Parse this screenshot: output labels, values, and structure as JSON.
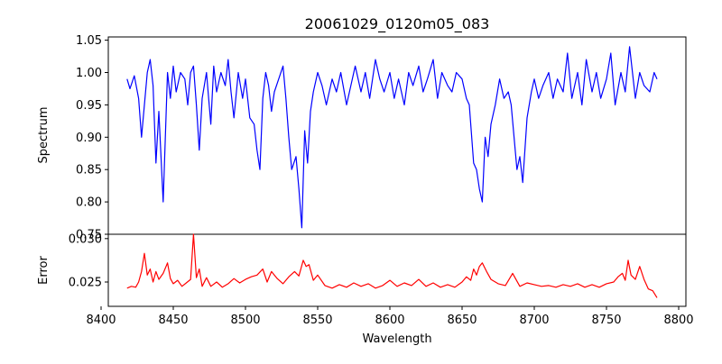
{
  "title": "20061029_0120m05_083",
  "chart_data": [
    {
      "type": "line",
      "ylabel": "Spectrum",
      "xlim": [
        8405,
        8805
      ],
      "ylim": [
        0.75,
        1.055
      ],
      "yticks": [
        "0.75",
        "0.80",
        "0.85",
        "0.90",
        "0.95",
        "1.00",
        "1.05"
      ],
      "series": [
        {
          "color": "#0000ff",
          "x": [
            8418,
            8420,
            8423,
            8426,
            8428,
            8430,
            8432,
            8434,
            8436,
            8438,
            8440,
            8443,
            8446,
            8448,
            8450,
            8452,
            8455,
            8458,
            8460,
            8462,
            8464,
            8466,
            8468,
            8470,
            8473,
            8476,
            8478,
            8480,
            8483,
            8486,
            8488,
            8490,
            8492,
            8495,
            8498,
            8500,
            8503,
            8506,
            8508,
            8510,
            8512,
            8514,
            8516,
            8518,
            8520,
            8523,
            8526,
            8528,
            8530,
            8532,
            8535,
            8537,
            8539,
            8541,
            8543,
            8545,
            8547,
            8550,
            8553,
            8556,
            8560,
            8563,
            8566,
            8570,
            8573,
            8576,
            8580,
            8583,
            8586,
            8590,
            8593,
            8596,
            8600,
            8603,
            8606,
            8610,
            8613,
            8616,
            8620,
            8623,
            8626,
            8630,
            8633,
            8636,
            8640,
            8643,
            8646,
            8650,
            8653,
            8655,
            8658,
            8660,
            8662,
            8664,
            8666,
            8668,
            8670,
            8673,
            8676,
            8679,
            8682,
            8684,
            8686,
            8688,
            8690,
            8692,
            8695,
            8698,
            8700,
            8703,
            8706,
            8710,
            8713,
            8716,
            8720,
            8723,
            8726,
            8730,
            8733,
            8736,
            8740,
            8743,
            8746,
            8750,
            8753,
            8756,
            8760,
            8763,
            8766,
            8770,
            8773,
            8776,
            8780,
            8783,
            8785
          ],
          "values": [
            0.99,
            0.975,
            0.995,
            0.96,
            0.9,
            0.95,
            1.0,
            1.02,
            0.98,
            0.86,
            0.94,
            0.8,
            1.0,
            0.96,
            1.01,
            0.97,
            1.0,
            0.99,
            0.95,
            1.0,
            1.01,
            0.95,
            0.88,
            0.96,
            1.0,
            0.92,
            1.01,
            0.97,
            1.0,
            0.98,
            1.02,
            0.97,
            0.93,
            1.0,
            0.96,
            0.99,
            0.93,
            0.92,
            0.88,
            0.85,
            0.96,
            1.0,
            0.98,
            0.94,
            0.97,
            0.99,
            1.01,
            0.96,
            0.9,
            0.85,
            0.87,
            0.82,
            0.76,
            0.91,
            0.86,
            0.94,
            0.97,
            1.0,
            0.98,
            0.95,
            0.99,
            0.97,
            1.0,
            0.95,
            0.98,
            1.01,
            0.97,
            1.0,
            0.96,
            1.02,
            0.99,
            0.97,
            1.0,
            0.96,
            0.99,
            0.95,
            1.0,
            0.98,
            1.01,
            0.97,
            0.99,
            1.02,
            0.96,
            1.0,
            0.98,
            0.97,
            1.0,
            0.99,
            0.96,
            0.95,
            0.86,
            0.85,
            0.82,
            0.8,
            0.9,
            0.87,
            0.92,
            0.95,
            0.99,
            0.96,
            0.97,
            0.95,
            0.9,
            0.85,
            0.87,
            0.83,
            0.93,
            0.97,
            0.99,
            0.96,
            0.98,
            1.0,
            0.96,
            0.99,
            0.97,
            1.03,
            0.96,
            1.0,
            0.95,
            1.02,
            0.97,
            1.0,
            0.96,
            0.99,
            1.03,
            0.95,
            1.0,
            0.97,
            1.04,
            0.96,
            1.0,
            0.98,
            0.97,
            1.0,
            0.99
          ]
        }
      ]
    },
    {
      "type": "line",
      "xlabel": "Wavelength",
      "ylabel": "Error",
      "xlim": [
        8405,
        8805
      ],
      "ylim": [
        0.0222,
        0.0305
      ],
      "yticks": [
        "0.025",
        "0.030"
      ],
      "xticks": [
        "8400",
        "8450",
        "8500",
        "8550",
        "8600",
        "8650",
        "8700",
        "8750",
        "8800"
      ],
      "series": [
        {
          "color": "#ff0000",
          "x": [
            8418,
            8421,
            8424,
            8426,
            8428,
            8430,
            8432,
            8434,
            8436,
            8438,
            8440,
            8443,
            8446,
            8448,
            8450,
            8453,
            8456,
            8459,
            8462,
            8464,
            8466,
            8468,
            8470,
            8473,
            8476,
            8480,
            8484,
            8488,
            8492,
            8496,
            8500,
            8504,
            8508,
            8512,
            8515,
            8518,
            8522,
            8526,
            8530,
            8534,
            8537,
            8540,
            8542,
            8544,
            8547,
            8550,
            8555,
            8560,
            8565,
            8570,
            8575,
            8580,
            8585,
            8590,
            8595,
            8600,
            8605,
            8610,
            8615,
            8620,
            8625,
            8630,
            8635,
            8640,
            8645,
            8650,
            8653,
            8656,
            8658,
            8660,
            8662,
            8664,
            8667,
            8670,
            8675,
            8680,
            8685,
            8690,
            8695,
            8700,
            8705,
            8710,
            8715,
            8720,
            8725,
            8730,
            8735,
            8740,
            8745,
            8750,
            8755,
            8758,
            8761,
            8763,
            8765,
            8767,
            8770,
            8773,
            8776,
            8779,
            8782,
            8785
          ],
          "values": [
            0.0243,
            0.0245,
            0.0244,
            0.025,
            0.0262,
            0.0283,
            0.0258,
            0.0265,
            0.025,
            0.0262,
            0.0253,
            0.026,
            0.0272,
            0.0254,
            0.0248,
            0.0252,
            0.0245,
            0.0249,
            0.0253,
            0.0305,
            0.0255,
            0.0265,
            0.0245,
            0.0255,
            0.0245,
            0.025,
            0.0244,
            0.0248,
            0.0254,
            0.0249,
            0.0253,
            0.0256,
            0.0258,
            0.0265,
            0.025,
            0.0262,
            0.0254,
            0.0248,
            0.0256,
            0.0262,
            0.0257,
            0.0275,
            0.0268,
            0.027,
            0.0252,
            0.0258,
            0.0246,
            0.0243,
            0.0247,
            0.0244,
            0.0249,
            0.0245,
            0.0248,
            0.0243,
            0.0246,
            0.0252,
            0.0245,
            0.0249,
            0.0246,
            0.0253,
            0.0245,
            0.0249,
            0.0244,
            0.0247,
            0.0244,
            0.025,
            0.0256,
            0.0252,
            0.0265,
            0.0258,
            0.0268,
            0.0272,
            0.0262,
            0.0253,
            0.0248,
            0.0246,
            0.026,
            0.0245,
            0.0249,
            0.0247,
            0.0245,
            0.0246,
            0.0244,
            0.0247,
            0.0245,
            0.0248,
            0.0244,
            0.0247,
            0.0244,
            0.0248,
            0.025,
            0.0256,
            0.026,
            0.0252,
            0.0275,
            0.0258,
            0.0253,
            0.0268,
            0.0253,
            0.0242,
            0.024,
            0.0232
          ]
        }
      ]
    }
  ]
}
